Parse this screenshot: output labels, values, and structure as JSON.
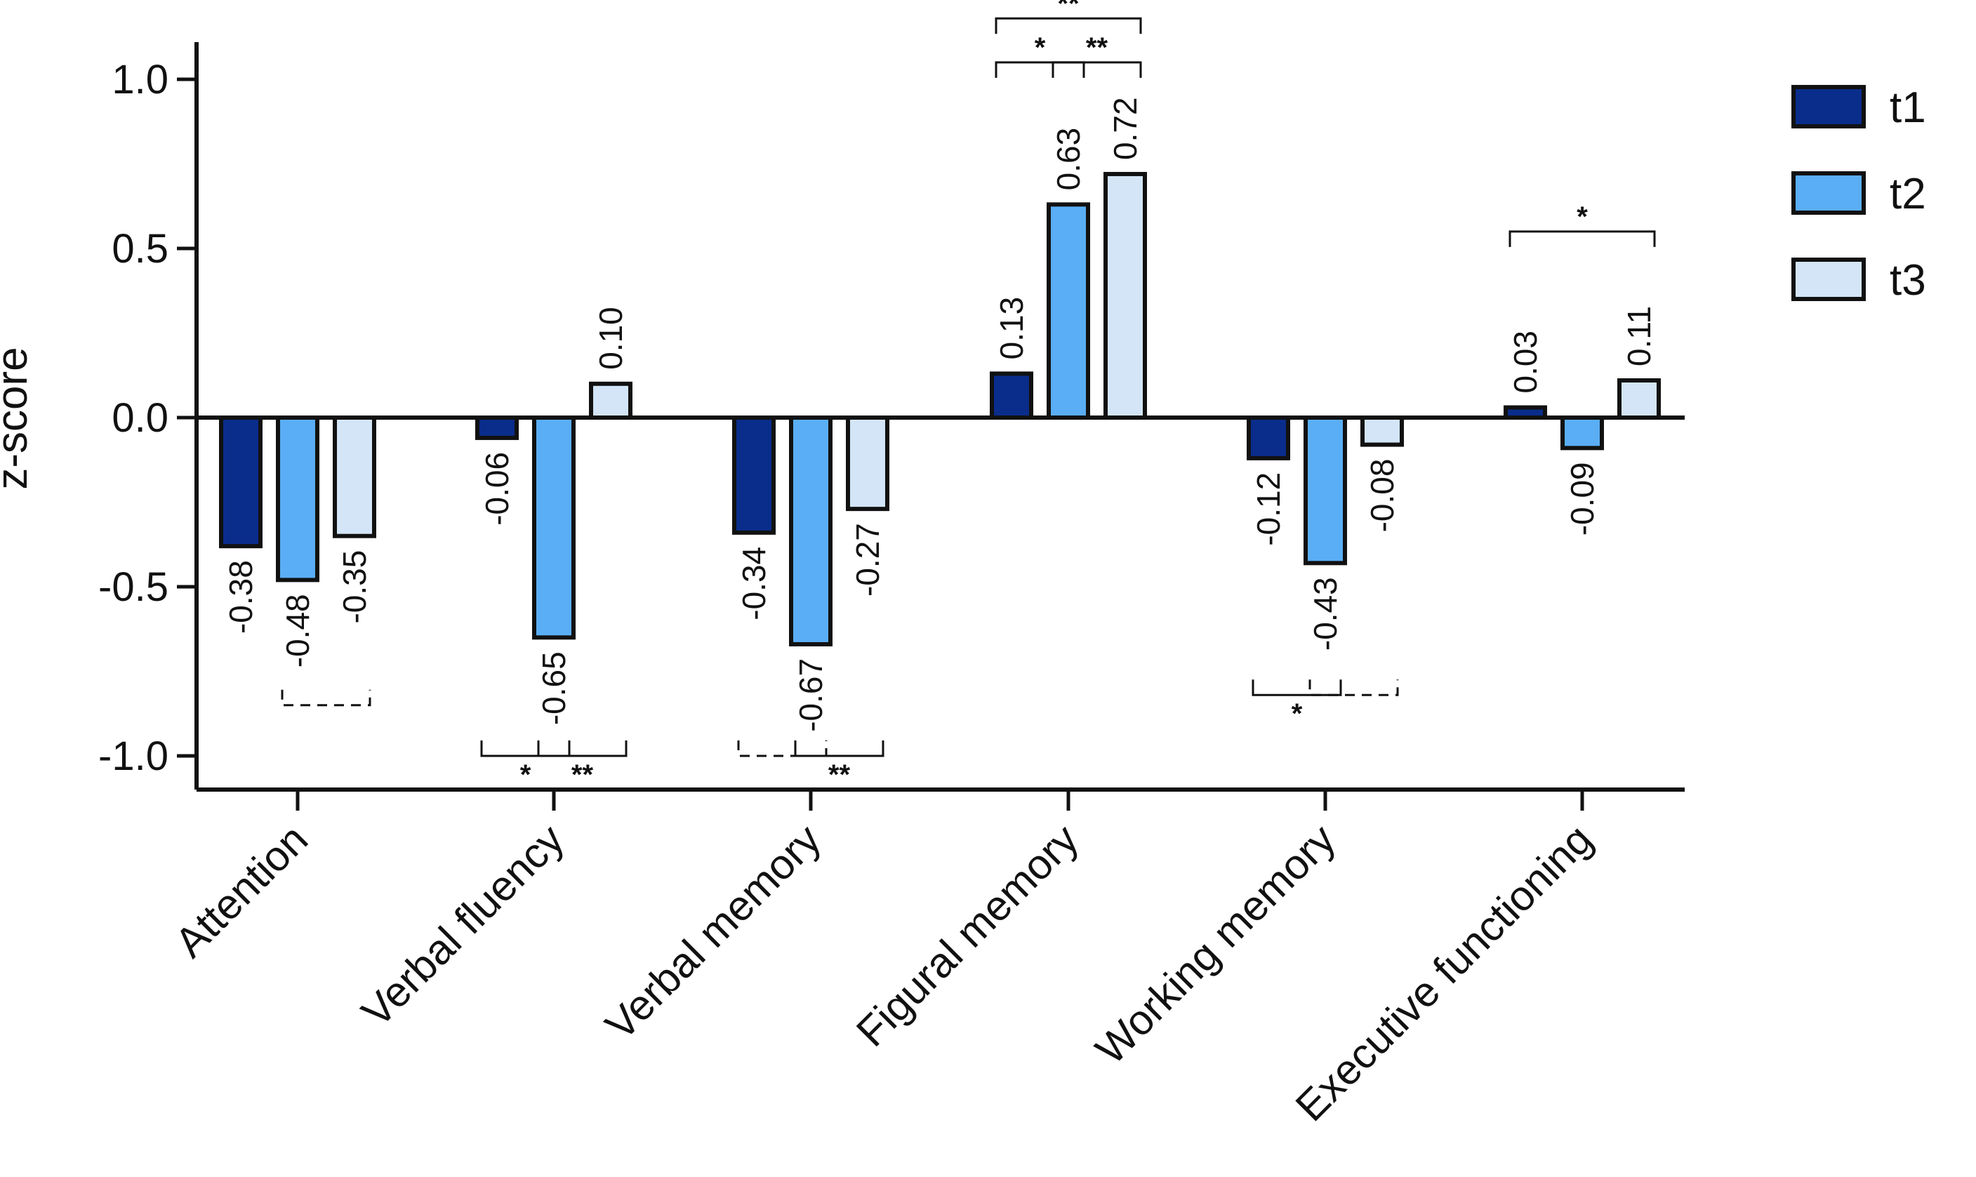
{
  "chart_data": {
    "type": "bar",
    "title": "",
    "xlabel": "",
    "ylabel": "z-score",
    "ylim": [
      -1.1,
      1.1
    ],
    "yticks": [
      1.0,
      0.5,
      0.0,
      -0.5,
      -1.0
    ],
    "ytick_labels": [
      "1.0",
      "0.5",
      "0.0",
      "-0.5",
      "-1.0"
    ],
    "grid": false,
    "legend_position": "top-right",
    "categories": [
      "Attention",
      "Verbal fluency",
      "Verbal memory",
      "Figural memory",
      "Working memory",
      "Executive functioning"
    ],
    "series": [
      {
        "name": "t1",
        "color": "#0a2d8c",
        "values": [
          -0.38,
          -0.06,
          -0.34,
          0.13,
          -0.12,
          0.03
        ],
        "labels": [
          "-0.38",
          "-0.06",
          "-0.34",
          "0.13",
          "-0.12",
          "0.03"
        ]
      },
      {
        "name": "t2",
        "color": "#5aaef5",
        "values": [
          -0.48,
          -0.65,
          -0.67,
          0.63,
          -0.43,
          -0.09
        ],
        "labels": [
          "-0.48",
          "-0.65",
          "-0.67",
          "0.63",
          "-0.43",
          "-0.09"
        ]
      },
      {
        "name": "t3",
        "color": "#d3e5f7",
        "values": [
          -0.35,
          0.1,
          -0.27,
          0.72,
          -0.08,
          0.11
        ],
        "labels": [
          "-0.35",
          "0.10",
          "-0.27",
          "0.72",
          "-0.08",
          "0.11"
        ]
      }
    ],
    "significance": [
      {
        "category": "Attention",
        "from": "t2",
        "to": "t3",
        "label": "",
        "dashed": true,
        "side": "below",
        "level": -0.85
      },
      {
        "category": "Verbal fluency",
        "from": "t1",
        "to": "t2",
        "label": "*",
        "dashed": false,
        "side": "below",
        "level": -1.0
      },
      {
        "category": "Verbal fluency",
        "from": "t2",
        "to": "t3",
        "label": "**",
        "dashed": false,
        "side": "below",
        "level": -1.0
      },
      {
        "category": "Verbal memory",
        "from": "t1",
        "to": "t2",
        "label": "",
        "dashed": true,
        "side": "below",
        "level": -1.0
      },
      {
        "category": "Verbal memory",
        "from": "t2",
        "to": "t3",
        "label": "**",
        "dashed": false,
        "side": "below",
        "level": -1.0
      },
      {
        "category": "Figural memory",
        "from": "t1",
        "to": "t2",
        "label": "*",
        "dashed": false,
        "side": "above",
        "level": 1.05
      },
      {
        "category": "Figural memory",
        "from": "t2",
        "to": "t3",
        "label": "**",
        "dashed": false,
        "side": "above",
        "level": 1.05
      },
      {
        "category": "Figural memory",
        "from": "t1",
        "to": "t3",
        "label": "**",
        "dashed": false,
        "side": "above",
        "level": 1.18
      },
      {
        "category": "Working memory",
        "from": "t1",
        "to": "t2",
        "label": "*",
        "dashed": false,
        "side": "below",
        "level": -0.82
      },
      {
        "category": "Working memory",
        "from": "t2",
        "to": "t3",
        "label": "",
        "dashed": true,
        "side": "below",
        "level": -0.82
      },
      {
        "category": "Executive functioning",
        "from": "t1",
        "to": "t3",
        "label": "*",
        "dashed": false,
        "side": "above",
        "level": 0.55
      }
    ]
  }
}
